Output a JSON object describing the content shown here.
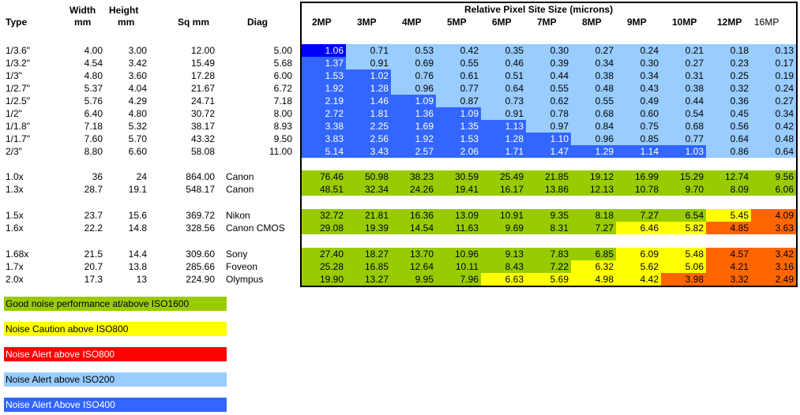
{
  "headers": {
    "type": "Type",
    "width_top": "Width",
    "width_bottom": "mm",
    "height_top": "Height",
    "height_bottom": "mm",
    "sqmm": "Sq mm",
    "diag": "Diag",
    "panel_title": "Relative Pixel Site Size (microns)",
    "mp": [
      "2MP",
      "3MP",
      "4MP",
      "5MP",
      "6MP",
      "7MP",
      "8MP",
      "9MP",
      "10MP",
      "12MP",
      "16MP"
    ]
  },
  "colors": {
    "A": "#99ccff",
    "B": "#3366ff",
    "C": "#0000ff",
    "G": "#99cc00",
    "Y": "#ffff00",
    "O": "#ff6600",
    "R": "#ff0000",
    "W": "#ffffff"
  },
  "rows": [
    {
      "type": "1/3.6\"",
      "width": "4.00",
      "height": "3.00",
      "sqmm": "12.00",
      "brand": "",
      "diag": "5.00",
      "values": [
        "1.06",
        "0.71",
        "0.53",
        "0.42",
        "0.35",
        "0.30",
        "0.27",
        "0.24",
        "0.21",
        "0.18",
        "0.13"
      ],
      "colors": [
        "C",
        "A",
        "A",
        "A",
        "A",
        "A",
        "A",
        "A",
        "A",
        "A",
        "A"
      ]
    },
    {
      "type": "1/3.2\"",
      "width": "4.54",
      "height": "3.42",
      "sqmm": "15.49",
      "brand": "",
      "diag": "5.68",
      "values": [
        "1.37",
        "0.91",
        "0.69",
        "0.55",
        "0.46",
        "0.39",
        "0.34",
        "0.30",
        "0.27",
        "0.23",
        "0.17"
      ],
      "colors": [
        "B",
        "A",
        "A",
        "A",
        "A",
        "A",
        "A",
        "A",
        "A",
        "A",
        "A"
      ]
    },
    {
      "type": "1/3\"",
      "width": "4.80",
      "height": "3.60",
      "sqmm": "17.28",
      "brand": "",
      "diag": "6.00",
      "values": [
        "1.53",
        "1.02",
        "0.76",
        "0.61",
        "0.51",
        "0.44",
        "0.38",
        "0.34",
        "0.31",
        "0.25",
        "0.19"
      ],
      "colors": [
        "B",
        "B",
        "A",
        "A",
        "A",
        "A",
        "A",
        "A",
        "A",
        "A",
        "A"
      ]
    },
    {
      "type": "1/2.7\"",
      "width": "5.37",
      "height": "4.04",
      "sqmm": "21.67",
      "brand": "",
      "diag": "6.72",
      "values": [
        "1.92",
        "1.28",
        "0.96",
        "0.77",
        "0.64",
        "0.55",
        "0.48",
        "0.43",
        "0.38",
        "0.32",
        "0.24"
      ],
      "colors": [
        "B",
        "B",
        "A",
        "A",
        "A",
        "A",
        "A",
        "A",
        "A",
        "A",
        "A"
      ]
    },
    {
      "type": "1/2.5\"",
      "width": "5.76",
      "height": "4.29",
      "sqmm": "24.71",
      "brand": "",
      "diag": "7.18",
      "values": [
        "2.19",
        "1.46",
        "1.09",
        "0.87",
        "0.73",
        "0.62",
        "0.55",
        "0.49",
        "0.44",
        "0.36",
        "0.27"
      ],
      "colors": [
        "B",
        "B",
        "B",
        "A",
        "A",
        "A",
        "A",
        "A",
        "A",
        "A",
        "A"
      ]
    },
    {
      "type": "1/2\"",
      "width": "6.40",
      "height": "4.80",
      "sqmm": "30.72",
      "brand": "",
      "diag": "8.00",
      "values": [
        "2.72",
        "1.81",
        "1.36",
        "1.09",
        "0.91",
        "0.78",
        "0.68",
        "0.60",
        "0.54",
        "0.45",
        "0.34"
      ],
      "colors": [
        "B",
        "B",
        "B",
        "B",
        "A",
        "A",
        "A",
        "A",
        "A",
        "A",
        "A"
      ]
    },
    {
      "type": "1/1.8\"",
      "width": "7.18",
      "height": "5.32",
      "sqmm": "38.17",
      "brand": "",
      "diag": "8.93",
      "values": [
        "3.38",
        "2.25",
        "1.69",
        "1.35",
        "1.13",
        "0.97",
        "0.84",
        "0.75",
        "0.68",
        "0.56",
        "0.42"
      ],
      "colors": [
        "B",
        "B",
        "B",
        "B",
        "B",
        "A",
        "A",
        "A",
        "A",
        "A",
        "A"
      ]
    },
    {
      "type": "1/1.7\"",
      "width": "7.60",
      "height": "5.70",
      "sqmm": "43.32",
      "brand": "",
      "diag": "9.50",
      "values": [
        "3.83",
        "2.56",
        "1.92",
        "1.53",
        "1.28",
        "1.10",
        "0.96",
        "0.85",
        "0.77",
        "0.64",
        "0.48"
      ],
      "colors": [
        "B",
        "B",
        "B",
        "B",
        "B",
        "B",
        "A",
        "A",
        "A",
        "A",
        "A"
      ]
    },
    {
      "type": "2/3\"",
      "width": "8.80",
      "height": "6.60",
      "sqmm": "58.08",
      "brand": "",
      "diag": "11.00",
      "values": [
        "5.14",
        "3.43",
        "2.57",
        "2.06",
        "1.71",
        "1.47",
        "1.29",
        "1.14",
        "1.03",
        "0.86",
        "0.64"
      ],
      "colors": [
        "B",
        "B",
        "B",
        "B",
        "B",
        "B",
        "B",
        "B",
        "B",
        "A",
        "A"
      ]
    },
    {
      "type": "1.0x",
      "width": "36",
      "height": "24",
      "sqmm": "864.00",
      "brand": "Canon",
      "diag": "",
      "values": [
        "76.46",
        "50.98",
        "38.23",
        "30.59",
        "25.49",
        "21.85",
        "19.12",
        "16.99",
        "15.29",
        "12.74",
        "9.56"
      ],
      "colors": [
        "G",
        "G",
        "G",
        "G",
        "G",
        "G",
        "G",
        "G",
        "G",
        "G",
        "G"
      ]
    },
    {
      "type": "1.3x",
      "width": "28.7",
      "height": "19.1",
      "sqmm": "548.17",
      "brand": "Canon",
      "diag": "",
      "values": [
        "48.51",
        "32.34",
        "24.26",
        "19.41",
        "16.17",
        "13.86",
        "12.13",
        "10.78",
        "9.70",
        "8.09",
        "6.06"
      ],
      "colors": [
        "G",
        "G",
        "G",
        "G",
        "G",
        "G",
        "G",
        "G",
        "G",
        "G",
        "G"
      ]
    },
    {
      "type": "1.5x",
      "width": "23.7",
      "height": "15.6",
      "sqmm": "369.72",
      "brand": "Nikon",
      "diag": "",
      "values": [
        "32.72",
        "21.81",
        "16.36",
        "13.09",
        "10.91",
        "9.35",
        "8.18",
        "7.27",
        "6.54",
        "5.45",
        "4.09"
      ],
      "colors": [
        "G",
        "G",
        "G",
        "G",
        "G",
        "G",
        "G",
        "G",
        "G",
        "Y",
        "O"
      ]
    },
    {
      "type": "1.6x",
      "width": "22.2",
      "height": "14.8",
      "sqmm": "328.56",
      "brand": "Canon CMOS",
      "diag": "",
      "values": [
        "29.08",
        "19.39",
        "14.54",
        "11.63",
        "9.69",
        "8.31",
        "7.27",
        "6.46",
        "5.82",
        "4.85",
        "3.63"
      ],
      "colors": [
        "G",
        "G",
        "G",
        "G",
        "G",
        "G",
        "G",
        "Y",
        "Y",
        "O",
        "O"
      ]
    },
    {
      "type": "1.68x",
      "width": "21.5",
      "height": "14.4",
      "sqmm": "309.60",
      "brand": "Sony",
      "diag": "",
      "values": [
        "27.40",
        "18.27",
        "13.70",
        "10.96",
        "9.13",
        "7.83",
        "6.85",
        "6.09",
        "5.48",
        "4.57",
        "3.42"
      ],
      "colors": [
        "G",
        "G",
        "G",
        "G",
        "G",
        "G",
        "G",
        "Y",
        "Y",
        "O",
        "O"
      ]
    },
    {
      "type": "1.7x",
      "width": "20.7",
      "height": "13.8",
      "sqmm": "285.66",
      "brand": "Foveon",
      "diag": "",
      "values": [
        "25.28",
        "16.85",
        "12.64",
        "10.11",
        "8.43",
        "7.22",
        "6.32",
        "5.62",
        "5.06",
        "4.21",
        "3.16"
      ],
      "colors": [
        "G",
        "G",
        "G",
        "G",
        "G",
        "G",
        "Y",
        "Y",
        "Y",
        "O",
        "O"
      ]
    },
    {
      "type": "2.0x",
      "width": "17.3",
      "height": "13",
      "sqmm": "224.90",
      "brand": "Olympus",
      "diag": "",
      "values": [
        "19.90",
        "13.27",
        "9.95",
        "7.96",
        "6.63",
        "5.69",
        "4.98",
        "4.42",
        "3.98",
        "3.32",
        "2.49"
      ],
      "colors": [
        "G",
        "G",
        "G",
        "G",
        "Y",
        "Y",
        "Y",
        "Y",
        "O",
        "O",
        "O"
      ]
    }
  ],
  "legend": [
    {
      "label": "Good noise performance at/above ISO1600",
      "color": "G"
    },
    {
      "label": "Noise Caution above ISO800",
      "color": "Y"
    },
    {
      "label": "Noise Alert above ISO800",
      "color": "R"
    },
    {
      "label": "Noise Alert above ISO200",
      "color": "A"
    },
    {
      "label": "Noise Alert Above ISO400",
      "color": "B"
    }
  ]
}
